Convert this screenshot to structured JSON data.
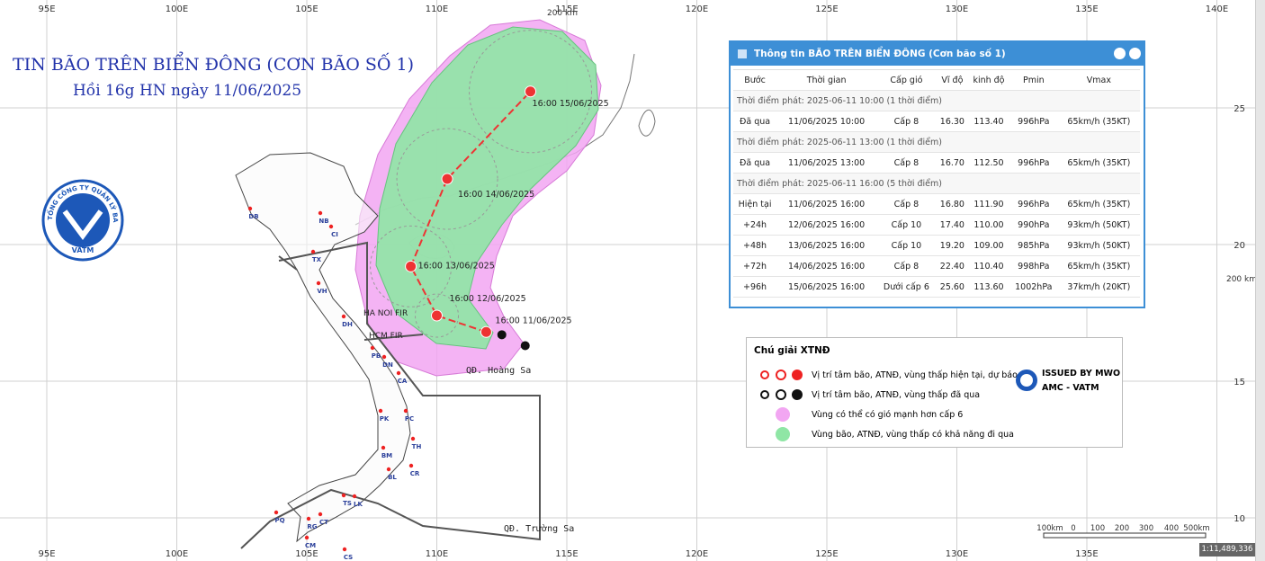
{
  "map": {
    "title": "TIN BÃO TRÊN BIỂN ĐÔNG (CƠN BÃO SỐ 1)",
    "subtitle": "Hồi 16g HN ngày 11/06/2025",
    "logo": {
      "ring_text": "TỔNG CÔNG TY QUẢN LÝ BAY VIỆT NAM",
      "name": "VATM"
    },
    "lon_labels": [
      {
        "value": 95,
        "label": "95E"
      },
      {
        "value": 100,
        "label": "100E"
      },
      {
        "value": 105,
        "label": "105E"
      },
      {
        "value": 110,
        "label": "110E"
      },
      {
        "value": 115,
        "label": "115E"
      },
      {
        "value": 120,
        "label": "120E"
      },
      {
        "value": 125,
        "label": "125E"
      },
      {
        "value": 130,
        "label": "130E"
      },
      {
        "value": 135,
        "label": "135E"
      },
      {
        "value": 140,
        "label": "140E"
      }
    ],
    "lat_labels": [
      25,
      20,
      15,
      10
    ],
    "scale_top": "200 km",
    "scale_right": "200 km",
    "track_labels": [
      "16:00 11/06/2025",
      "16:00 12/06/2025",
      "16:00 13/06/2025",
      "16:00 14/06/2025",
      "16:00 15/06/2025"
    ],
    "fir_labels": [
      "HA NOI FIR",
      "HCM FIR"
    ],
    "islands": [
      "QĐ. Hoàng Sa",
      "QĐ. Trường Sa"
    ],
    "airports": [
      "DB",
      "NB",
      "CI",
      "TX",
      "VH",
      "DH",
      "PB",
      "DN",
      "CA",
      "PK",
      "PC",
      "TH",
      "BM",
      "CR",
      "BL",
      "LK",
      "TS",
      "CT",
      "RG",
      "PQ",
      "CM",
      "CS"
    ],
    "scalebar": {
      "labels": [
        "100km",
        "0",
        "100",
        "200",
        "300",
        "400",
        "500km"
      ],
      "ratio": "1:11,489,336"
    }
  },
  "panel": {
    "title": "Thông tin BÃO TRÊN BIỂN ĐÔNG (Cơn bão số 1)",
    "columns": [
      "Bước",
      "Thời gian",
      "Cấp gió",
      "Vĩ độ",
      "kinh độ",
      "Pmin",
      "Vmax"
    ],
    "groups": [
      {
        "heading": "Thời điểm phát: 2025-06-11 10:00 (1 thời điểm)",
        "rows": [
          [
            "Đã qua",
            "11/06/2025 10:00",
            "Cấp 8",
            "16.30",
            "113.40",
            "996hPa",
            "65km/h (35KT)"
          ]
        ]
      },
      {
        "heading": "Thời điểm phát: 2025-06-11 13:00 (1 thời điểm)",
        "rows": [
          [
            "Đã qua",
            "11/06/2025 13:00",
            "Cấp 8",
            "16.70",
            "112.50",
            "996hPa",
            "65km/h (35KT)"
          ]
        ]
      },
      {
        "heading": "Thời điểm phát: 2025-06-11 16:00 (5 thời điểm)",
        "rows": [
          [
            "Hiện tại",
            "11/06/2025 16:00",
            "Cấp 8",
            "16.80",
            "111.90",
            "996hPa",
            "65km/h (35KT)"
          ],
          [
            "+24h",
            "12/06/2025 16:00",
            "Cấp 10",
            "17.40",
            "110.00",
            "990hPa",
            "93km/h (50KT)"
          ],
          [
            "+48h",
            "13/06/2025 16:00",
            "Cấp 10",
            "19.20",
            "109.00",
            "985hPa",
            "93km/h (50KT)"
          ],
          [
            "+72h",
            "14/06/2025 16:00",
            "Cấp 8",
            "22.40",
            "110.40",
            "998hPa",
            "65km/h (35KT)"
          ],
          [
            "+96h",
            "15/06/2025 16:00",
            "Dưới cấp 6",
            "25.60",
            "113.60",
            "1002hPa",
            "37km/h (20KT)"
          ]
        ]
      }
    ]
  },
  "legend": {
    "title": "Chú giải XTNĐ",
    "items": [
      "Vị trí tâm bão, ATNĐ, vùng thấp hiện tại, dự báo",
      "Vị trí tâm bão, ATNĐ, vùng thấp đã qua",
      "Vùng có thể có gió mạnh hơn cấp 6",
      "Vùng bão, ATNĐ, vùng thấp có khả năng đi qua"
    ],
    "issued": [
      "ISSUED BY MWO",
      "AMC - VATM"
    ]
  }
}
